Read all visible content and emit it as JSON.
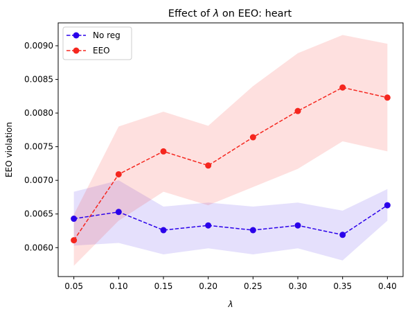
{
  "chart_data": {
    "type": "line",
    "title_prefix": "Effect of ",
    "title_symbol": "λ",
    "title_suffix": " on EEO: heart",
    "xlabel": "λ",
    "ylabel": "EEO violation",
    "x": [
      0.05,
      0.1,
      0.15,
      0.2,
      0.25,
      0.3,
      0.35,
      0.4
    ],
    "x_tick_labels": [
      "0.05",
      "0.10",
      "0.15",
      "0.20",
      "0.25",
      "0.30",
      "0.35",
      "0.40"
    ],
    "y_ticks": [
      0.006,
      0.0065,
      0.007,
      0.0075,
      0.008,
      0.0085,
      0.009
    ],
    "y_tick_labels": [
      "0.0060",
      "0.0065",
      "0.0070",
      "0.0075",
      "0.0080",
      "0.0085",
      "0.0090"
    ],
    "xlim": [
      0.0325,
      0.4175
    ],
    "ylim": [
      0.00557,
      0.00934
    ],
    "grid": false,
    "legend_position": "top-left",
    "series": [
      {
        "name": "No reg",
        "color": "#2a00ea",
        "values": [
          0.00643,
          0.00653,
          0.00626,
          0.00633,
          0.00626,
          0.00633,
          0.00619,
          0.00663
        ],
        "lower": [
          0.00603,
          0.00607,
          0.0059,
          0.00599,
          0.0059,
          0.00599,
          0.00581,
          0.0064
        ],
        "upper": [
          0.00683,
          0.007,
          0.00661,
          0.00667,
          0.00661,
          0.00667,
          0.00655,
          0.00687
        ]
      },
      {
        "name": "EEO",
        "color": "#f5261e",
        "values": [
          0.00611,
          0.00709,
          0.00743,
          0.00722,
          0.00764,
          0.00803,
          0.00838,
          0.00823
        ],
        "lower": [
          0.00573,
          0.0064,
          0.00683,
          0.00663,
          0.0069,
          0.00717,
          0.00758,
          0.00743
        ],
        "upper": [
          0.00649,
          0.0078,
          0.00802,
          0.00781,
          0.0084,
          0.00889,
          0.00916,
          0.00903
        ]
      }
    ]
  }
}
